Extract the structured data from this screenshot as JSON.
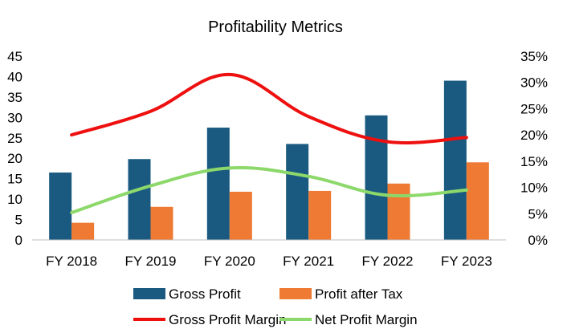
{
  "chart_data": {
    "type": "bar",
    "title": "Profitability Metrics",
    "categories": [
      "FY 2018",
      "FY 2019",
      "FY 2020",
      "FY 2021",
      "FY 2022",
      "FY 2023"
    ],
    "bar_series": [
      {
        "name": "Gross Profit",
        "color": "#1a5a80",
        "values": [
          16.5,
          19.8,
          27.5,
          23.5,
          30.5,
          39.0
        ]
      },
      {
        "name": "Profit after Tax",
        "color": "#ee7a33",
        "values": [
          4.2,
          8.1,
          11.8,
          12.0,
          13.8,
          19.0
        ]
      }
    ],
    "line_series": [
      {
        "name": "Gross Profit Margin",
        "color": "#ee0f0f",
        "axis": "right",
        "values": [
          20.0,
          24.5,
          31.5,
          23.5,
          18.7,
          19.5
        ]
      },
      {
        "name": "Net Profit Margin",
        "color": "#8cd86a",
        "axis": "right",
        "values": [
          5.2,
          10.3,
          13.7,
          12.1,
          8.5,
          9.5
        ]
      }
    ],
    "ylim": [
      0,
      45
    ],
    "y_ticks": [
      "0",
      "5",
      "10",
      "15",
      "20",
      "25",
      "30",
      "35",
      "40",
      "45"
    ],
    "y2lim": [
      0,
      35
    ],
    "y2_ticks": [
      "0%",
      "5%",
      "10%",
      "15%",
      "20%",
      "25%",
      "30%",
      "35%"
    ],
    "grid": false,
    "legend_position": "bottom"
  }
}
